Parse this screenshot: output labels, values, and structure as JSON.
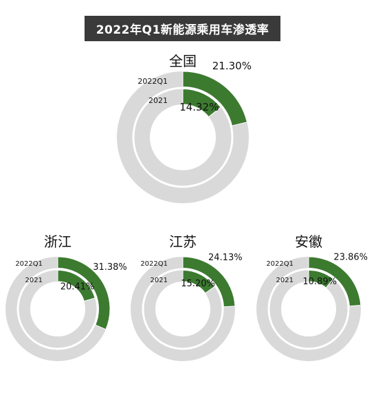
{
  "title": "2022年Q1新能源乘用车渗透率",
  "colors": {
    "fill": "#3c7a30",
    "track": "#d9d9d9"
  },
  "chart_data": [
    {
      "type": "pie",
      "subtype": "double-ring",
      "region": "全国",
      "rings": [
        {
          "name": "2022Q1",
          "value": 21.3,
          "label": "21.30%"
        },
        {
          "name": "2021",
          "value": 14.32,
          "label": "14.32%"
        }
      ]
    },
    {
      "type": "pie",
      "subtype": "double-ring",
      "region": "浙江",
      "rings": [
        {
          "name": "2022Q1",
          "value": 31.38,
          "label": "31.38%"
        },
        {
          "name": "2021",
          "value": 20.41,
          "label": "20.41%"
        }
      ]
    },
    {
      "type": "pie",
      "subtype": "double-ring",
      "region": "江苏",
      "rings": [
        {
          "name": "2022Q1",
          "value": 24.13,
          "label": "24.13%"
        },
        {
          "name": "2021",
          "value": 15.2,
          "label": "15.20%"
        }
      ]
    },
    {
      "type": "pie",
      "subtype": "double-ring",
      "region": "安徽",
      "rings": [
        {
          "name": "2022Q1",
          "value": 23.86,
          "label": "23.86%"
        },
        {
          "name": "2021",
          "value": 10.89,
          "label": "10.89%"
        }
      ]
    }
  ]
}
